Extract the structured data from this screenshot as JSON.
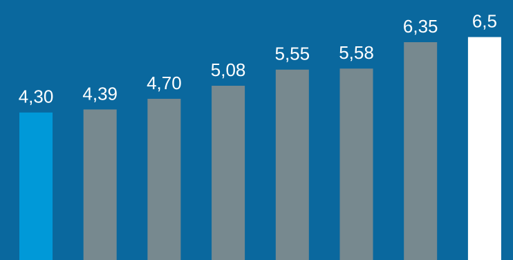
{
  "chart_data": {
    "type": "bar",
    "title": "",
    "xlabel": "",
    "ylabel": "",
    "grid": false,
    "legend": "none",
    "ylim": [
      0,
      6.5
    ],
    "values": [
      4.3,
      4.39,
      4.7,
      5.08,
      5.55,
      5.58,
      6.35,
      6.5
    ],
    "data_labels": [
      "4,30",
      "4,39",
      "4,70",
      "5,08",
      "5,55",
      "5,58",
      "6,35",
      "6,5"
    ],
    "bar_colors": [
      "#0099d8",
      "#77898f",
      "#77898f",
      "#77898f",
      "#77898f",
      "#77898f",
      "#77898f",
      "#ffffff"
    ],
    "background_color": "#0a689e",
    "label_color": "#ffffff"
  }
}
